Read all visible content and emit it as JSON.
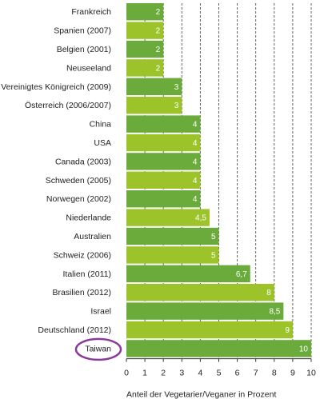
{
  "chart_data": {
    "type": "bar",
    "orientation": "horizontal",
    "categories": [
      "Frankreich",
      "Spanien (2007)",
      "Belgien (2001)",
      "Neuseeland",
      "Vereinigtes Königreich (2009)",
      "Österreich (2006/2007)",
      "China",
      "USA",
      "Canada (2003)",
      "Schweden (2005)",
      "Norwegen (2002)",
      "Niederlande",
      "Australien",
      "Schweiz (2006)",
      "Italien (2011)",
      "Brasilien (2012)",
      "Israel",
      "Deutschland (2012)",
      "Taiwan"
    ],
    "values": [
      2,
      2,
      2,
      2,
      3,
      3,
      4,
      4,
      4,
      4,
      4,
      4.5,
      5,
      5,
      6.7,
      8,
      8.5,
      9,
      10
    ],
    "value_labels": [
      "2",
      "2",
      "2",
      "2",
      "3",
      "3",
      "4",
      "4",
      "4",
      "4",
      "4",
      "4,5",
      "5",
      "5",
      "6,7",
      "8",
      "8,5",
      "9",
      "10"
    ],
    "x_ticks": [
      "0",
      "1",
      "2",
      "3",
      "4",
      "5",
      "6",
      "7",
      "8",
      "9",
      "10"
    ],
    "xlim": [
      0,
      10
    ],
    "xlabel": "Anteil der Vegetarier/Veganer in Prozent",
    "grid": "vertical dashed",
    "highlighted_category": "Taiwan",
    "colors": {
      "bar_dark": "#6aab3c",
      "bar_light": "#9cc32a",
      "grid": "#555555",
      "highlight_ellipse": "#8a3a9a"
    }
  }
}
